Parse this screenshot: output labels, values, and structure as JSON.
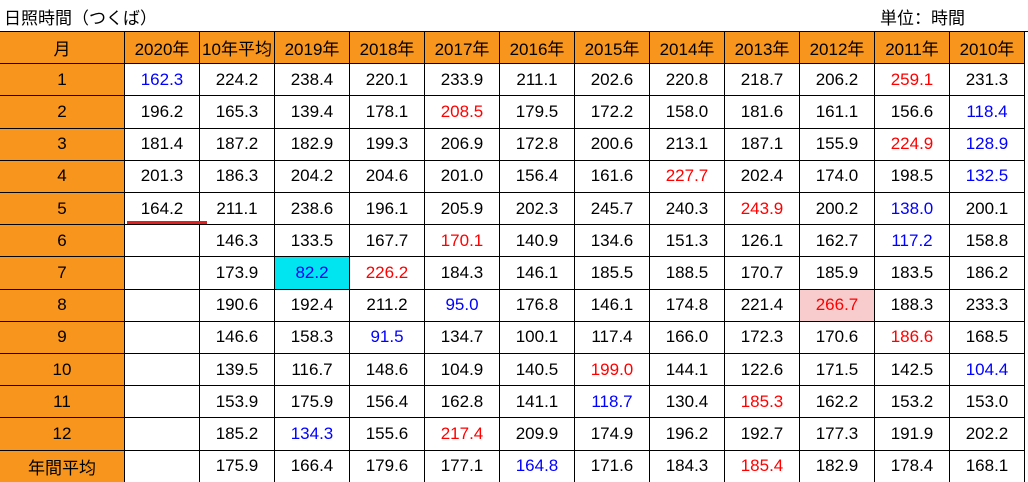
{
  "title": "日照時間（つくば）",
  "unit": "単位：時間",
  "table": {
    "header": [
      "月",
      "2020年",
      "10年平均",
      "2019年",
      "2018年",
      "2017年",
      "2016年",
      "2015年",
      "2014年",
      "2013年",
      "2012年",
      "2011年",
      "2010年"
    ],
    "rows": [
      [
        "1",
        "162.3",
        "224.2",
        "238.4",
        "220.1",
        "233.9",
        "211.1",
        "202.6",
        "220.8",
        "218.7",
        "206.2",
        "259.1",
        "231.3"
      ],
      [
        "2",
        "196.2",
        "165.3",
        "139.4",
        "178.1",
        "208.5",
        "179.5",
        "172.2",
        "158.0",
        "181.6",
        "161.1",
        "156.6",
        "118.4"
      ],
      [
        "3",
        "181.4",
        "187.2",
        "182.9",
        "199.3",
        "206.9",
        "172.8",
        "200.6",
        "213.1",
        "187.1",
        "155.9",
        "224.9",
        "128.9"
      ],
      [
        "4",
        "201.3",
        "186.3",
        "204.2",
        "204.6",
        "201.0",
        "156.4",
        "161.6",
        "227.7",
        "202.4",
        "174.0",
        "198.5",
        "132.5"
      ],
      [
        "5",
        "164.2",
        "211.1",
        "238.6",
        "196.1",
        "205.9",
        "202.3",
        "245.7",
        "240.3",
        "243.9",
        "200.2",
        "138.0",
        "200.1"
      ],
      [
        "6",
        null,
        "146.3",
        "133.5",
        "167.7",
        "170.1",
        "140.9",
        "134.6",
        "151.3",
        "126.1",
        "162.7",
        "117.2",
        "158.8"
      ],
      [
        "7",
        null,
        "173.9",
        "82.2",
        "226.2",
        "184.3",
        "146.1",
        "185.5",
        "188.5",
        "170.7",
        "185.9",
        "183.5",
        "186.2"
      ],
      [
        "8",
        null,
        "190.6",
        "192.4",
        "211.2",
        "95.0",
        "176.8",
        "146.1",
        "174.8",
        "221.4",
        "266.7",
        "188.3",
        "233.3"
      ],
      [
        "9",
        null,
        "146.6",
        "158.3",
        "91.5",
        "134.7",
        "100.1",
        "117.4",
        "166.0",
        "172.3",
        "170.6",
        "186.6",
        "168.5"
      ],
      [
        "10",
        null,
        "139.5",
        "116.7",
        "148.6",
        "104.9",
        "140.5",
        "199.0",
        "144.1",
        "122.6",
        "171.5",
        "142.5",
        "104.4"
      ],
      [
        "11",
        null,
        "153.9",
        "175.9",
        "156.4",
        "162.8",
        "141.1",
        "118.7",
        "130.4",
        "185.3",
        "162.2",
        "153.2",
        "153.0"
      ],
      [
        "12",
        null,
        "185.2",
        "134.3",
        "155.6",
        "217.4",
        "209.9",
        "174.9",
        "196.2",
        "192.7",
        "177.3",
        "191.9",
        "202.2"
      ],
      [
        "年間平均",
        null,
        "175.9",
        "166.4",
        "179.6",
        "177.1",
        "164.8",
        "171.6",
        "184.3",
        "185.4",
        "182.9",
        "178.4",
        "168.1"
      ]
    ],
    "cell_styles": [
      {
        "row": 0,
        "col": 1,
        "color": "#0000ff"
      },
      {
        "row": 0,
        "col": 11,
        "color": "#ff0000"
      },
      {
        "row": 1,
        "col": 5,
        "color": "#ff0000"
      },
      {
        "row": 1,
        "col": 12,
        "color": "#0000ff"
      },
      {
        "row": 2,
        "col": 11,
        "color": "#ff0000"
      },
      {
        "row": 2,
        "col": 12,
        "color": "#0000ff"
      },
      {
        "row": 3,
        "col": 8,
        "color": "#ff0000"
      },
      {
        "row": 3,
        "col": 12,
        "color": "#0000ff"
      },
      {
        "row": 4,
        "col": 9,
        "color": "#ff0000"
      },
      {
        "row": 4,
        "col": 11,
        "color": "#0000ff"
      },
      {
        "row": 5,
        "col": 5,
        "color": "#ff0000"
      },
      {
        "row": 5,
        "col": 11,
        "color": "#0000ff"
      },
      {
        "row": 6,
        "col": 3,
        "color": "#0000ff",
        "fill": "#00e5f0"
      },
      {
        "row": 6,
        "col": 4,
        "color": "#ff0000"
      },
      {
        "row": 7,
        "col": 5,
        "color": "#0000ff"
      },
      {
        "row": 7,
        "col": 10,
        "color": "#ff0000",
        "fill": "#f8cccc"
      },
      {
        "row": 8,
        "col": 4,
        "color": "#0000ff"
      },
      {
        "row": 8,
        "col": 11,
        "color": "#ff0000"
      },
      {
        "row": 9,
        "col": 7,
        "color": "#ff0000"
      },
      {
        "row": 9,
        "col": 12,
        "color": "#0000ff"
      },
      {
        "row": 10,
        "col": 7,
        "color": "#0000ff"
      },
      {
        "row": 10,
        "col": 9,
        "color": "#ff0000"
      },
      {
        "row": 11,
        "col": 3,
        "color": "#0000ff"
      },
      {
        "row": 11,
        "col": 5,
        "color": "#ff0000"
      },
      {
        "row": 12,
        "col": 6,
        "color": "#0000ff"
      },
      {
        "row": 12,
        "col": 9,
        "color": "#ff0000"
      }
    ]
  }
}
